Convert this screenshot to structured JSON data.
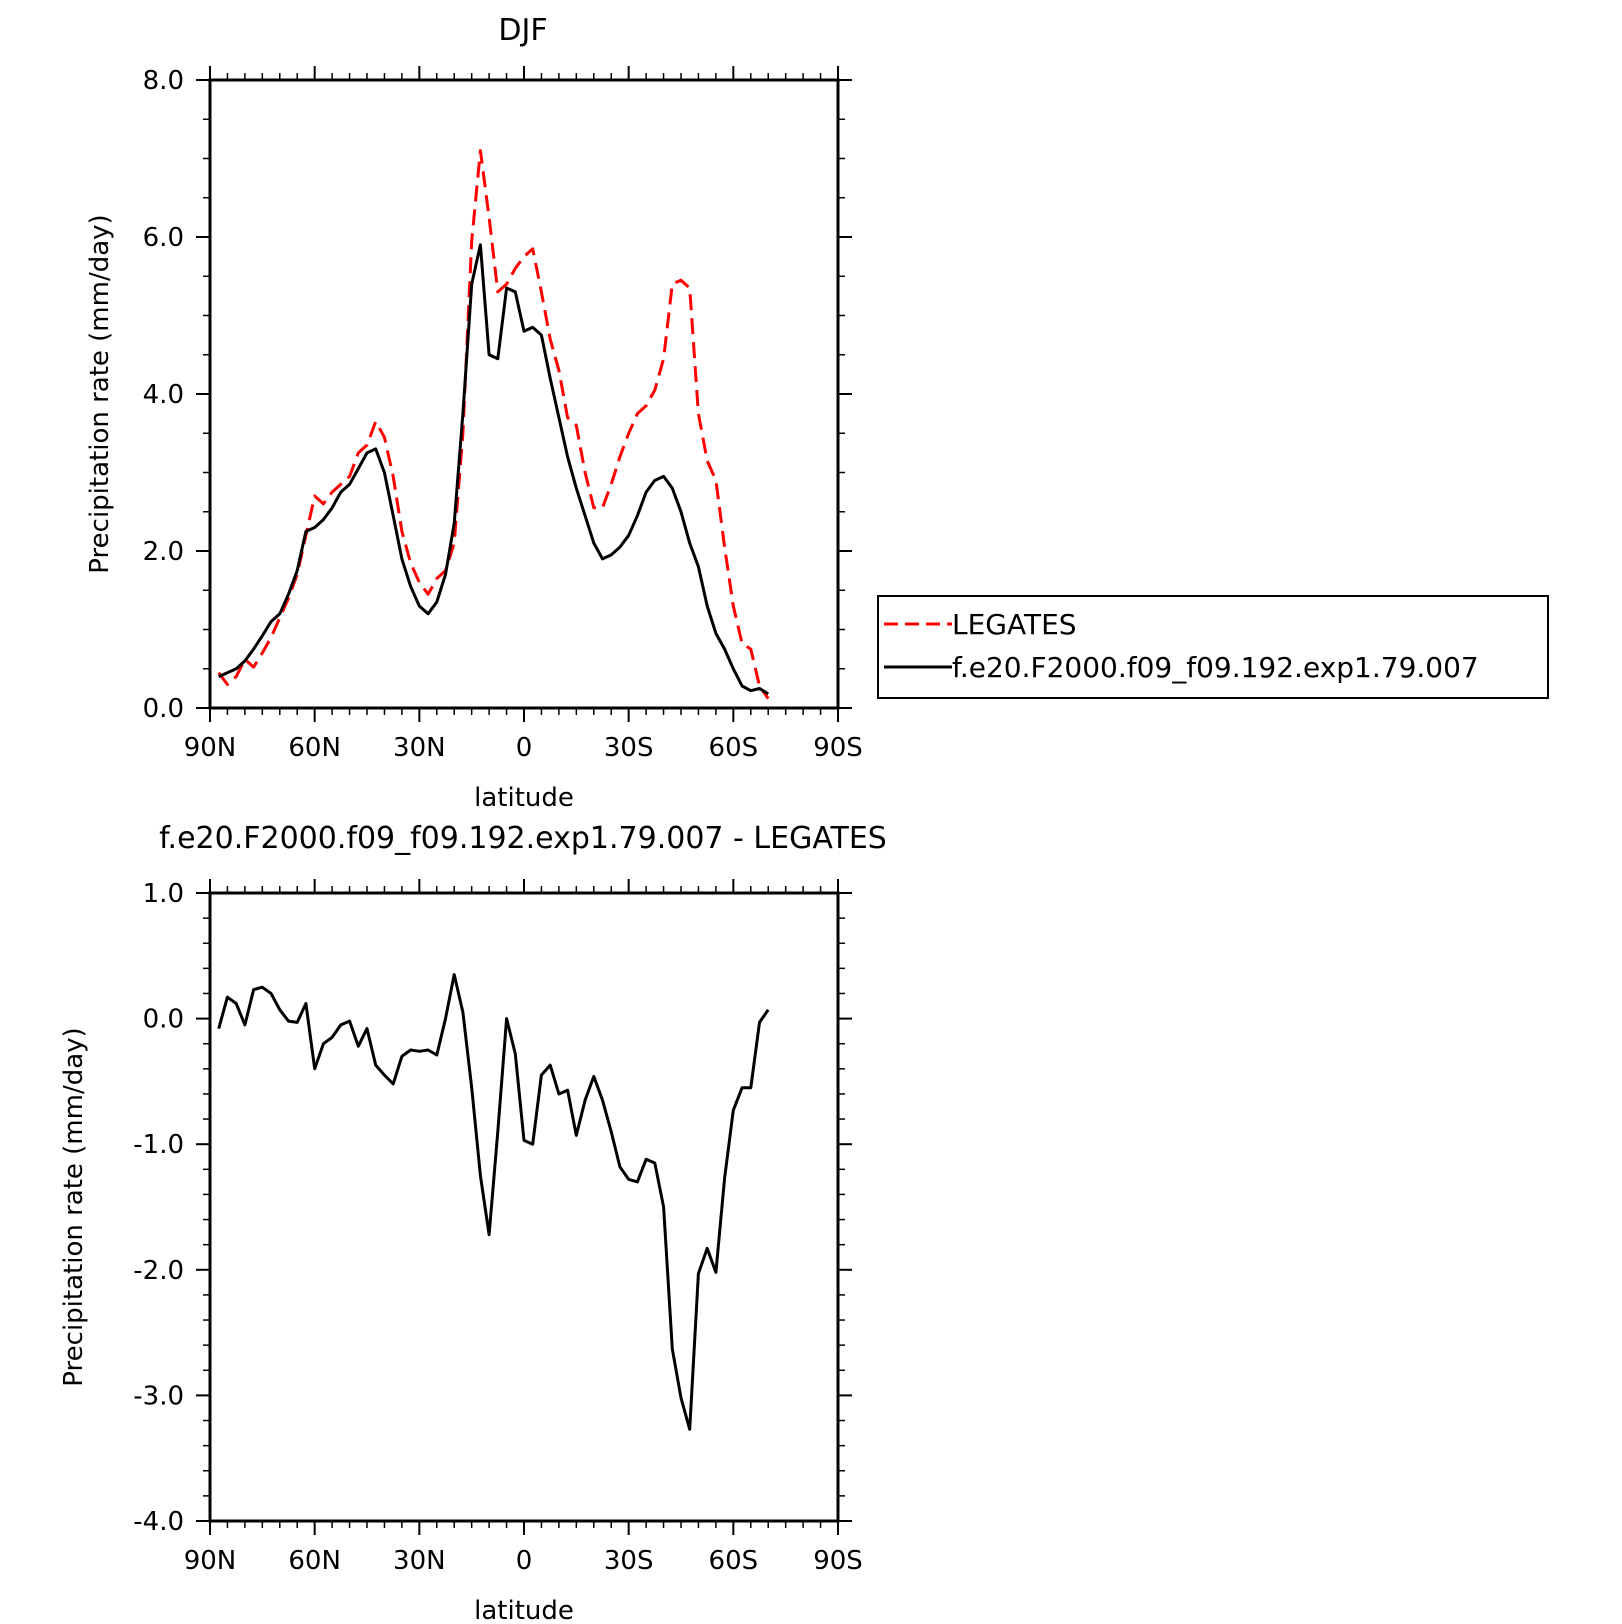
{
  "chart_data": [
    {
      "type": "line",
      "title": "DJF",
      "xlabel": "latitude",
      "ylabel": "Precipitation rate (mm/day)",
      "xlim": [
        90,
        -90
      ],
      "ylim": [
        0,
        8
      ],
      "x_tick_values": [
        90,
        60,
        30,
        0,
        -30,
        -60,
        -90
      ],
      "x_tick_labels": [
        "90N",
        "60N",
        "30N",
        "0",
        "30S",
        "60S",
        "90S"
      ],
      "y_tick_values": [
        0,
        2,
        4,
        6,
        8
      ],
      "y_tick_labels": [
        "0.0",
        "2.0",
        "4.0",
        "6.0",
        "8.0"
      ],
      "grid": false,
      "legend": "right",
      "series": [
        {
          "name": "LEGATES",
          "color": "#ff0000",
          "dash": "dashed",
          "points": [
            [
              87.5,
              0.45
            ],
            [
              85,
              0.3
            ],
            [
              82.5,
              0.4
            ],
            [
              80,
              0.62
            ],
            [
              77.5,
              0.52
            ],
            [
              75,
              0.7
            ],
            [
              72.5,
              0.9
            ],
            [
              70,
              1.15
            ],
            [
              67.5,
              1.4
            ],
            [
              65,
              1.7
            ],
            [
              62.5,
              2.2
            ],
            [
              60,
              2.7
            ],
            [
              57.5,
              2.6
            ],
            [
              55,
              2.75
            ],
            [
              52.5,
              2.85
            ],
            [
              50,
              2.95
            ],
            [
              47.5,
              3.25
            ],
            [
              45,
              3.35
            ],
            [
              42.5,
              3.65
            ],
            [
              40,
              3.45
            ],
            [
              37.5,
              2.95
            ],
            [
              35,
              2.25
            ],
            [
              32.5,
              1.85
            ],
            [
              30,
              1.6
            ],
            [
              27.5,
              1.45
            ],
            [
              25,
              1.65
            ],
            [
              22.5,
              1.75
            ],
            [
              20,
              2.1
            ],
            [
              17.5,
              3.5
            ],
            [
              15,
              5.95
            ],
            [
              12.5,
              7.1
            ],
            [
              10,
              6.25
            ],
            [
              7.5,
              5.3
            ],
            [
              5,
              5.4
            ],
            [
              2.5,
              5.6
            ],
            [
              0,
              5.75
            ],
            [
              -2.5,
              5.85
            ],
            [
              -5,
              5.3
            ],
            [
              -7.5,
              4.7
            ],
            [
              -10,
              4.3
            ],
            [
              -12.5,
              3.7
            ],
            [
              -15,
              3.6
            ],
            [
              -17.5,
              3.0
            ],
            [
              -20,
              2.55
            ],
            [
              -22.5,
              2.55
            ],
            [
              -25,
              2.85
            ],
            [
              -27.5,
              3.2
            ],
            [
              -30,
              3.5
            ],
            [
              -32.5,
              3.75
            ],
            [
              -35,
              3.85
            ],
            [
              -37.5,
              4.05
            ],
            [
              -40,
              4.45
            ],
            [
              -42.5,
              5.4
            ],
            [
              -45,
              5.45
            ],
            [
              -47.5,
              5.35
            ],
            [
              -50,
              3.75
            ],
            [
              -52.5,
              3.15
            ],
            [
              -55,
              2.9
            ],
            [
              -57.5,
              2.05
            ],
            [
              -60,
              1.3
            ],
            [
              -62.5,
              0.82
            ],
            [
              -65,
              0.75
            ],
            [
              -67.5,
              0.28
            ],
            [
              -70,
              0.12
            ]
          ]
        },
        {
          "name": "f.e20.F2000.f09_f09.192.exp1.79.007",
          "color": "#000000",
          "dash": "solid",
          "points": [
            [
              87.5,
              0.4
            ],
            [
              85,
              0.45
            ],
            [
              82.5,
              0.5
            ],
            [
              80,
              0.6
            ],
            [
              77.5,
              0.75
            ],
            [
              75,
              0.92
            ],
            [
              72.5,
              1.1
            ],
            [
              70,
              1.2
            ],
            [
              67.5,
              1.45
            ],
            [
              65,
              1.75
            ],
            [
              62.5,
              2.25
            ],
            [
              60,
              2.3
            ],
            [
              57.5,
              2.4
            ],
            [
              55,
              2.55
            ],
            [
              52.5,
              2.75
            ],
            [
              50,
              2.85
            ],
            [
              47.5,
              3.05
            ],
            [
              45,
              3.25
            ],
            [
              42.5,
              3.3
            ],
            [
              40,
              3.0
            ],
            [
              37.5,
              2.45
            ],
            [
              35,
              1.9
            ],
            [
              32.5,
              1.55
            ],
            [
              30,
              1.3
            ],
            [
              27.5,
              1.2
            ],
            [
              25,
              1.35
            ],
            [
              22.5,
              1.7
            ],
            [
              20,
              2.35
            ],
            [
              17.5,
              3.75
            ],
            [
              15,
              5.4
            ],
            [
              12.5,
              5.9
            ],
            [
              10,
              4.5
            ],
            [
              7.5,
              4.45
            ],
            [
              5,
              5.35
            ],
            [
              2.5,
              5.3
            ],
            [
              0,
              4.8
            ],
            [
              -2.5,
              4.85
            ],
            [
              -5,
              4.75
            ],
            [
              -7.5,
              4.2
            ],
            [
              -10,
              3.7
            ],
            [
              -12.5,
              3.2
            ],
            [
              -15,
              2.8
            ],
            [
              -17.5,
              2.45
            ],
            [
              -20,
              2.1
            ],
            [
              -22.5,
              1.9
            ],
            [
              -25,
              1.95
            ],
            [
              -27.5,
              2.05
            ],
            [
              -30,
              2.2
            ],
            [
              -32.5,
              2.45
            ],
            [
              -35,
              2.75
            ],
            [
              -37.5,
              2.9
            ],
            [
              -40,
              2.95
            ],
            [
              -42.5,
              2.8
            ],
            [
              -45,
              2.5
            ],
            [
              -47.5,
              2.1
            ],
            [
              -50,
              1.8
            ],
            [
              -52.5,
              1.3
            ],
            [
              -55,
              0.95
            ],
            [
              -57.5,
              0.75
            ],
            [
              -60,
              0.5
            ],
            [
              -62.5,
              0.28
            ],
            [
              -65,
              0.22
            ],
            [
              -67.5,
              0.25
            ],
            [
              -70,
              0.18
            ]
          ]
        }
      ]
    },
    {
      "type": "line",
      "title": "f.e20.F2000.f09_f09.192.exp1.79.007 - LEGATES",
      "xlabel": "latitude",
      "ylabel": "Precipitation rate (mm/day)",
      "xlim": [
        90,
        -90
      ],
      "ylim": [
        -4,
        1
      ],
      "x_tick_values": [
        90,
        60,
        30,
        0,
        -30,
        -60,
        -90
      ],
      "x_tick_labels": [
        "90N",
        "60N",
        "30N",
        "0",
        "30S",
        "60S",
        "90S"
      ],
      "y_tick_values": [
        -4,
        -3,
        -2,
        -1,
        0,
        1
      ],
      "y_tick_labels": [
        "-4.0",
        "-3.0",
        "-2.0",
        "-1.0",
        "0.0",
        "1.0"
      ],
      "grid": false,
      "series": [
        {
          "color": "#000000",
          "dash": "solid",
          "points": [
            [
              87.5,
              -0.08
            ],
            [
              85,
              0.17
            ],
            [
              82.5,
              0.12
            ],
            [
              80,
              -0.05
            ],
            [
              77.5,
              0.23
            ],
            [
              75,
              0.25
            ],
            [
              72.5,
              0.2
            ],
            [
              70,
              0.07
            ],
            [
              67.5,
              -0.02
            ],
            [
              65,
              -0.03
            ],
            [
              62.5,
              0.12
            ],
            [
              60,
              -0.4
            ],
            [
              57.5,
              -0.2
            ],
            [
              55,
              -0.15
            ],
            [
              52.5,
              -0.05
            ],
            [
              50,
              -0.02
            ],
            [
              47.5,
              -0.22
            ],
            [
              45,
              -0.08
            ],
            [
              42.5,
              -0.37
            ],
            [
              40,
              -0.45
            ],
            [
              37.5,
              -0.52
            ],
            [
              35,
              -0.3
            ],
            [
              32.5,
              -0.25
            ],
            [
              30,
              -0.26
            ],
            [
              27.5,
              -0.25
            ],
            [
              25,
              -0.29
            ],
            [
              22.5,
              0.0
            ],
            [
              20,
              0.35
            ],
            [
              17.5,
              0.05
            ],
            [
              15,
              -0.55
            ],
            [
              12.5,
              -1.25
            ],
            [
              10,
              -1.72
            ],
            [
              7.5,
              -0.9
            ],
            [
              5,
              0.0
            ],
            [
              2.5,
              -0.28
            ],
            [
              0,
              -0.97
            ],
            [
              -2.5,
              -1.0
            ],
            [
              -5,
              -0.45
            ],
            [
              -7.5,
              -0.37
            ],
            [
              -10,
              -0.6
            ],
            [
              -12.5,
              -0.57
            ],
            [
              -15,
              -0.93
            ],
            [
              -17.5,
              -0.65
            ],
            [
              -20,
              -0.46
            ],
            [
              -22.5,
              -0.65
            ],
            [
              -25,
              -0.9
            ],
            [
              -27.5,
              -1.18
            ],
            [
              -30,
              -1.28
            ],
            [
              -32.5,
              -1.3
            ],
            [
              -35,
              -1.12
            ],
            [
              -37.5,
              -1.15
            ],
            [
              -40,
              -1.5
            ],
            [
              -42.5,
              -2.63
            ],
            [
              -45,
              -3.02
            ],
            [
              -47.5,
              -3.27
            ],
            [
              -50,
              -2.03
            ],
            [
              -52.5,
              -1.83
            ],
            [
              -55,
              -2.02
            ],
            [
              -57.5,
              -1.27
            ],
            [
              -60,
              -0.73
            ],
            [
              -62.5,
              -0.55
            ],
            [
              -65,
              -0.55
            ],
            [
              -67.5,
              -0.03
            ],
            [
              -70,
              0.07
            ]
          ]
        }
      ]
    }
  ]
}
